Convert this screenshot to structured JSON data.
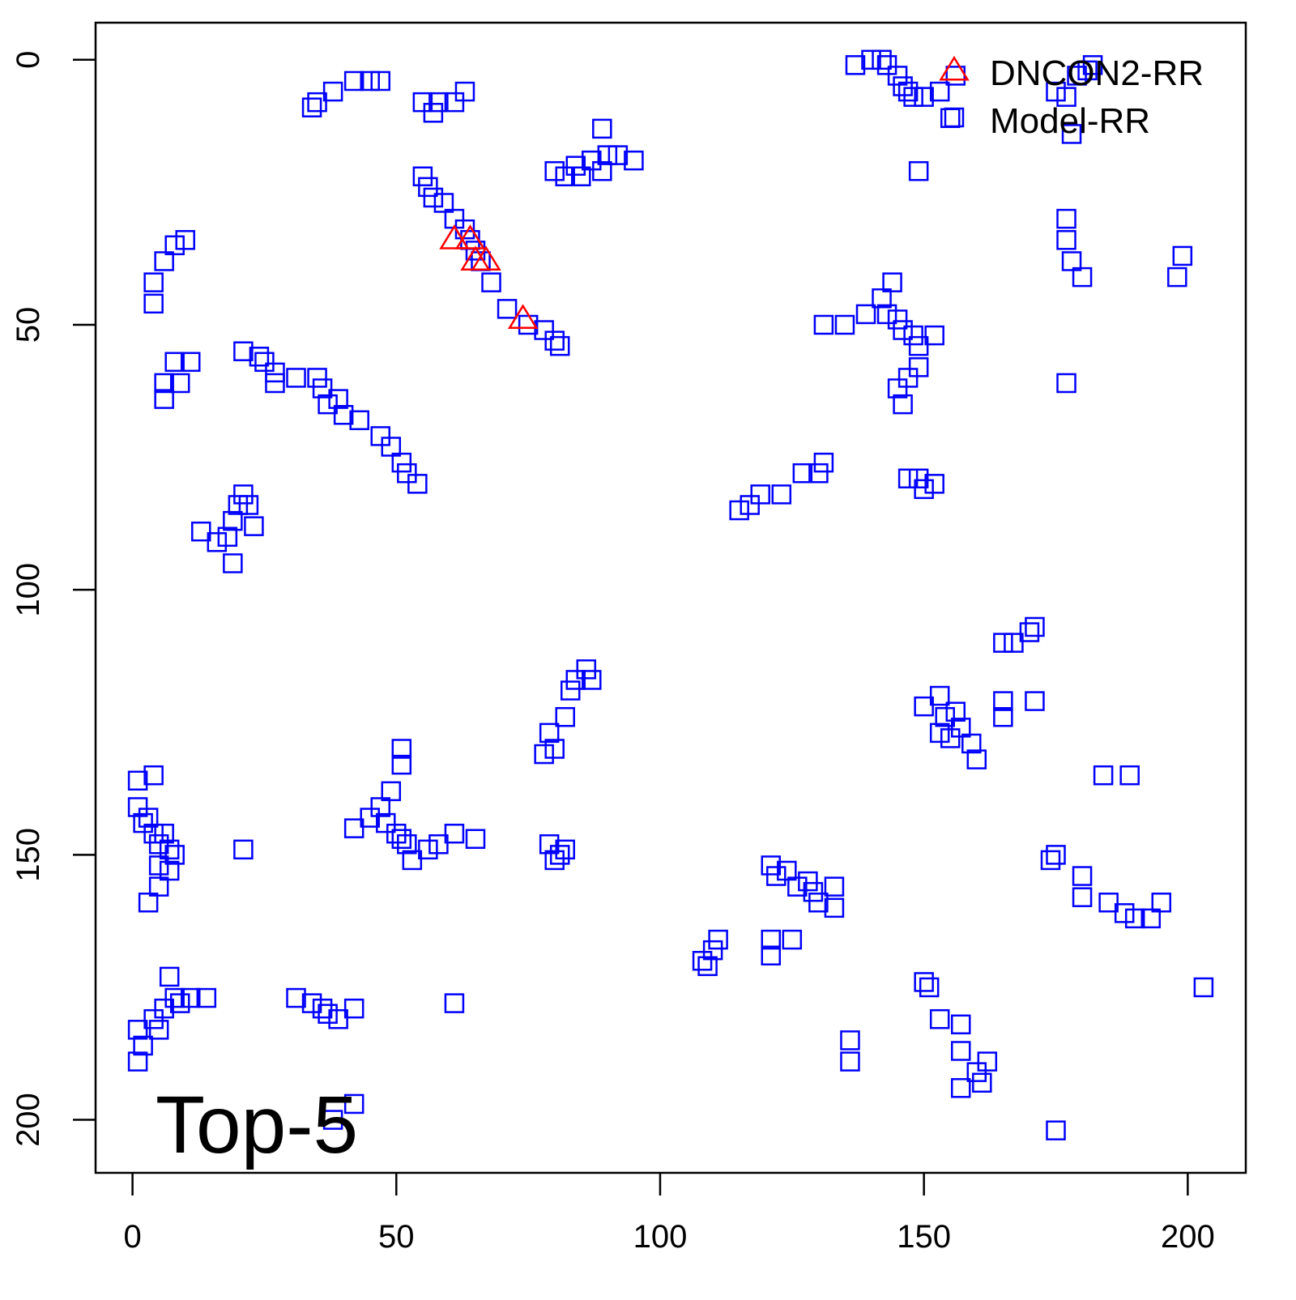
{
  "chart_data": {
    "type": "scatter",
    "title": "",
    "xlabel": "",
    "ylabel": "",
    "xlim": [
      -7,
      211
    ],
    "ylim": [
      -7,
      210
    ],
    "y_reversed": true,
    "grid": false,
    "legend_placement": "top-right",
    "x_ticks": [
      {
        "value": 0,
        "label": "0"
      },
      {
        "value": 50,
        "label": "50"
      },
      {
        "value": 100,
        "label": "100"
      },
      {
        "value": 150,
        "label": "150"
      },
      {
        "value": 200,
        "label": "200"
      }
    ],
    "y_ticks": [
      {
        "value": 0,
        "label": "0"
      },
      {
        "value": 50,
        "label": "50"
      },
      {
        "value": 100,
        "label": "100"
      },
      {
        "value": 150,
        "label": "150"
      },
      {
        "value": 200,
        "label": "200"
      }
    ],
    "annotation": "Top-5",
    "series": [
      {
        "name": "DNCON2-RR",
        "marker": "triangle",
        "color": "#ff0000",
        "points": [
          [
            61,
            34
          ],
          [
            64,
            34
          ],
          [
            65,
            38
          ],
          [
            67,
            38
          ],
          [
            74,
            49
          ]
        ]
      },
      {
        "name": "Model-RR",
        "marker": "square",
        "color": "#0000ff",
        "points": [
          [
            34,
            9
          ],
          [
            35,
            8
          ],
          [
            38,
            6
          ],
          [
            42,
            4
          ],
          [
            45,
            4
          ],
          [
            47,
            4
          ],
          [
            55,
            8
          ],
          [
            57,
            10
          ],
          [
            58,
            8
          ],
          [
            61,
            8
          ],
          [
            63,
            6
          ],
          [
            55,
            22
          ],
          [
            56,
            24
          ],
          [
            57,
            26
          ],
          [
            59,
            27
          ],
          [
            61,
            30
          ],
          [
            63,
            32
          ],
          [
            64,
            34
          ],
          [
            65,
            36
          ],
          [
            66,
            38
          ],
          [
            68,
            42
          ],
          [
            71,
            47
          ],
          [
            75,
            50
          ],
          [
            78,
            51
          ],
          [
            80,
            53
          ],
          [
            81,
            54
          ],
          [
            80,
            21
          ],
          [
            82,
            22
          ],
          [
            84,
            20
          ],
          [
            85,
            22
          ],
          [
            87,
            19
          ],
          [
            89,
            21
          ],
          [
            90,
            18
          ],
          [
            92,
            18
          ],
          [
            95,
            19
          ],
          [
            89,
            13
          ],
          [
            4,
            42
          ],
          [
            4,
            46
          ],
          [
            6,
            38
          ],
          [
            8,
            35
          ],
          [
            10,
            34
          ],
          [
            6,
            61
          ],
          [
            6,
            64
          ],
          [
            8,
            57
          ],
          [
            9,
            61
          ],
          [
            11,
            57
          ],
          [
            21,
            55
          ],
          [
            24,
            56
          ],
          [
            25,
            57
          ],
          [
            27,
            59
          ],
          [
            27,
            61
          ],
          [
            31,
            60
          ],
          [
            35,
            60
          ],
          [
            36,
            62
          ],
          [
            37,
            65
          ],
          [
            39,
            64
          ],
          [
            40,
            67
          ],
          [
            43,
            68
          ],
          [
            47,
            71
          ],
          [
            49,
            73
          ],
          [
            51,
            76
          ],
          [
            52,
            78
          ],
          [
            54,
            80
          ],
          [
            13,
            89
          ],
          [
            16,
            91
          ],
          [
            18,
            90
          ],
          [
            19,
            95
          ],
          [
            19,
            87
          ],
          [
            20,
            84
          ],
          [
            21,
            82
          ],
          [
            22,
            84
          ],
          [
            23,
            88
          ],
          [
            137,
            1
          ],
          [
            140,
            0
          ],
          [
            142,
            0
          ],
          [
            143,
            1
          ],
          [
            145,
            3
          ],
          [
            146,
            5
          ],
          [
            147,
            6
          ],
          [
            148,
            7
          ],
          [
            150,
            7
          ],
          [
            153,
            6
          ],
          [
            156,
            3
          ],
          [
            155,
            11
          ],
          [
            149,
            21
          ],
          [
            175,
            6
          ],
          [
            177,
            7
          ],
          [
            179,
            3
          ],
          [
            181,
            2
          ],
          [
            182,
            1
          ],
          [
            178,
            14
          ],
          [
            177,
            30
          ],
          [
            177,
            34
          ],
          [
            178,
            38
          ],
          [
            180,
            41
          ],
          [
            198,
            41
          ],
          [
            199,
            37
          ],
          [
            177,
            61
          ],
          [
            131,
            50
          ],
          [
            135,
            50
          ],
          [
            139,
            48
          ],
          [
            142,
            45
          ],
          [
            143,
            48
          ],
          [
            145,
            49
          ],
          [
            146,
            51
          ],
          [
            148,
            52
          ],
          [
            149,
            54
          ],
          [
            152,
            52
          ],
          [
            144,
            42
          ],
          [
            149,
            58
          ],
          [
            145,
            62
          ],
          [
            146,
            65
          ],
          [
            147,
            60
          ],
          [
            147,
            79
          ],
          [
            149,
            79
          ],
          [
            150,
            81
          ],
          [
            152,
            80
          ],
          [
            115,
            85
          ],
          [
            117,
            84
          ],
          [
            119,
            82
          ],
          [
            123,
            82
          ],
          [
            127,
            78
          ],
          [
            130,
            78
          ],
          [
            131,
            76
          ],
          [
            165,
            110
          ],
          [
            167,
            110
          ],
          [
            170,
            108
          ],
          [
            171,
            107
          ],
          [
            165,
            121
          ],
          [
            165,
            124
          ],
          [
            171,
            121
          ],
          [
            153,
            120
          ],
          [
            154,
            124
          ],
          [
            156,
            123
          ],
          [
            157,
            126
          ],
          [
            159,
            129
          ],
          [
            160,
            132
          ],
          [
            155,
            128
          ],
          [
            150,
            122
          ],
          [
            153,
            127
          ],
          [
            83,
            119
          ],
          [
            84,
            117
          ],
          [
            86,
            115
          ],
          [
            87,
            117
          ],
          [
            82,
            124
          ],
          [
            79,
            127
          ],
          [
            78,
            131
          ],
          [
            80,
            130
          ],
          [
            1,
            136
          ],
          [
            1,
            141
          ],
          [
            2,
            144
          ],
          [
            3,
            143
          ],
          [
            4,
            146
          ],
          [
            5,
            148
          ],
          [
            6,
            146
          ],
          [
            7,
            149
          ],
          [
            8,
            150
          ],
          [
            4,
            135
          ],
          [
            5,
            152
          ],
          [
            5,
            156
          ],
          [
            7,
            153
          ],
          [
            3,
            159
          ],
          [
            21,
            149
          ],
          [
            42,
            145
          ],
          [
            45,
            143
          ],
          [
            47,
            141
          ],
          [
            48,
            144
          ],
          [
            49,
            138
          ],
          [
            50,
            146
          ],
          [
            51,
            147
          ],
          [
            52,
            148
          ],
          [
            53,
            151
          ],
          [
            56,
            149
          ],
          [
            58,
            148
          ],
          [
            61,
            146
          ],
          [
            65,
            147
          ],
          [
            51,
            130
          ],
          [
            51,
            133
          ],
          [
            79,
            148
          ],
          [
            80,
            151
          ],
          [
            81,
            150
          ],
          [
            82,
            149
          ],
          [
            108,
            170
          ],
          [
            109,
            171
          ],
          [
            110,
            168
          ],
          [
            111,
            166
          ],
          [
            121,
            152
          ],
          [
            122,
            154
          ],
          [
            124,
            153
          ],
          [
            126,
            156
          ],
          [
            128,
            155
          ],
          [
            129,
            157
          ],
          [
            130,
            159
          ],
          [
            133,
            160
          ],
          [
            121,
            169
          ],
          [
            121,
            166
          ],
          [
            125,
            166
          ],
          [
            133,
            156
          ],
          [
            150,
            174
          ],
          [
            151,
            175
          ],
          [
            153,
            181
          ],
          [
            157,
            182
          ],
          [
            157,
            187
          ],
          [
            160,
            191
          ],
          [
            162,
            189
          ],
          [
            161,
            193
          ],
          [
            157,
            194
          ],
          [
            136,
            185
          ],
          [
            136,
            189
          ],
          [
            174,
            151
          ],
          [
            175,
            150
          ],
          [
            180,
            154
          ],
          [
            180,
            158
          ],
          [
            185,
            159
          ],
          [
            188,
            161
          ],
          [
            190,
            162
          ],
          [
            193,
            162
          ],
          [
            195,
            159
          ],
          [
            184,
            135
          ],
          [
            189,
            135
          ],
          [
            203,
            175
          ],
          [
            175,
            202
          ],
          [
            1,
            183
          ],
          [
            2,
            186
          ],
          [
            4,
            181
          ],
          [
            5,
            183
          ],
          [
            6,
            179
          ],
          [
            8,
            177
          ],
          [
            9,
            178
          ],
          [
            11,
            177
          ],
          [
            14,
            177
          ],
          [
            1,
            189
          ],
          [
            7,
            173
          ],
          [
            31,
            177
          ],
          [
            34,
            178
          ],
          [
            36,
            179
          ],
          [
            37,
            180
          ],
          [
            39,
            181
          ],
          [
            42,
            179
          ],
          [
            38,
            200
          ],
          [
            42,
            197
          ],
          [
            61,
            178
          ]
        ]
      }
    ]
  }
}
